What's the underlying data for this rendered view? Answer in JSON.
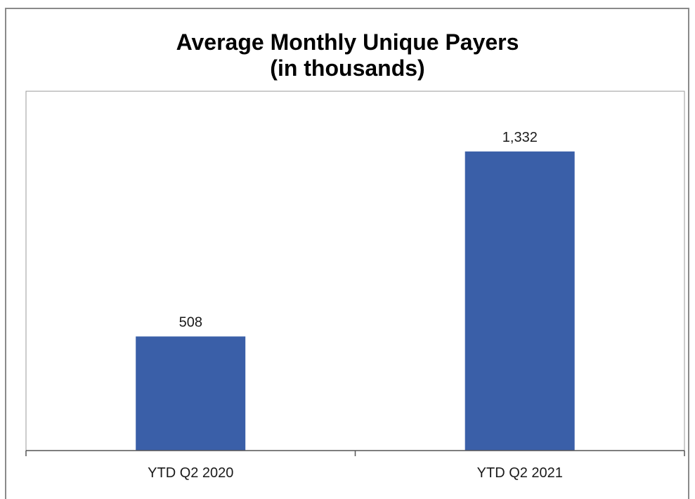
{
  "chart_data": {
    "type": "bar",
    "title": [
      "Average Monthly Unique Payers",
      "(in thousands)"
    ],
    "xlabel": "",
    "ylabel": "",
    "categories": [
      "YTD Q2 2020",
      "YTD Q2 2021"
    ],
    "values": [
      508,
      1332
    ],
    "data_labels": [
      "508",
      "1,332"
    ],
    "ylim": [
      0,
      1600
    ],
    "grid": false,
    "legend": "none",
    "colors": {
      "bar": "#3a5fa8"
    }
  }
}
